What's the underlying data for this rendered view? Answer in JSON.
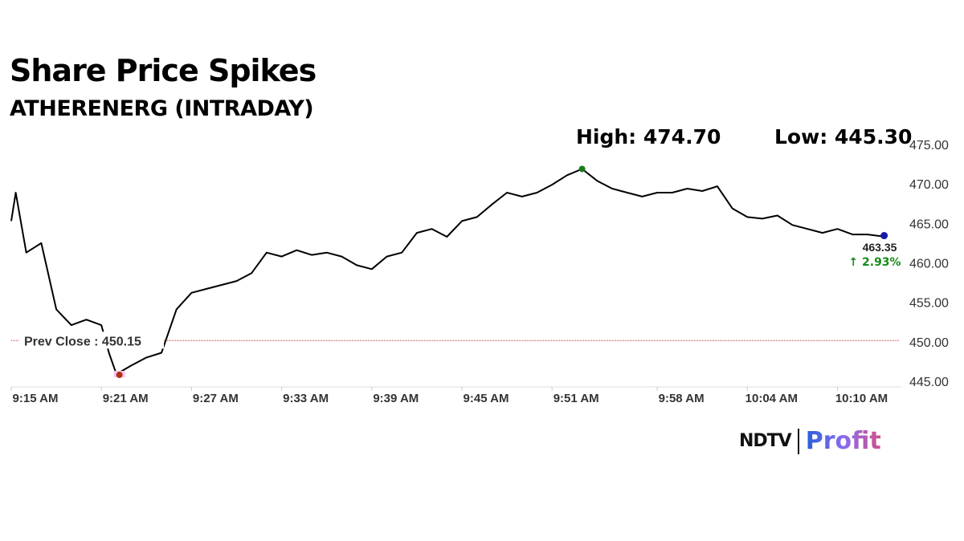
{
  "chart_data": {
    "type": "line",
    "title": "Share Price Spikes",
    "subtitle": "ATHERENERG (INTRADAY)",
    "high_label": "High: 474.70",
    "low_label": "Low: 445.30",
    "ylim": [
      445,
      475
    ],
    "yticks": [
      "475.00",
      "470.00",
      "465.00",
      "460.00",
      "455.00",
      "450.00",
      "445.00"
    ],
    "ytick_values": [
      475,
      470,
      465,
      460,
      455,
      450,
      445
    ],
    "xticks": [
      "9:15 AM",
      "9:21 AM",
      "9:27 AM",
      "9:33 AM",
      "9:39 AM",
      "9:45 AM",
      "9:51 AM",
      "9:58 AM",
      "10:04 AM",
      "10:10 AM"
    ],
    "xtick_times": [
      "9:15",
      "9:21",
      "9:27",
      "9:33",
      "9:39",
      "9:45",
      "9:51",
      "9:58",
      "10:04",
      "10:10"
    ],
    "xrange": [
      "9:15",
      "10:15"
    ],
    "grid": false,
    "line_color": "#000000",
    "prev_close": {
      "value": 450.15,
      "label": "Prev Close : 450.15",
      "color": "#c0392b"
    },
    "last": {
      "value_label": "463.35",
      "change_label": "↑ 2.93%",
      "change_color": "#1a8a1a",
      "marker_color": "#1a1aaa"
    },
    "high_marker_color": "#1a7a1a",
    "low_marker_color": "#b03010",
    "x": [
      "9:15",
      "9:15.3",
      "9:16",
      "9:17",
      "9:18",
      "9:19",
      "9:20",
      "9:21",
      "9:21.5",
      "9:22",
      "9:23",
      "9:24",
      "9:25",
      "9:26",
      "9:27",
      "9:28",
      "9:29",
      "9:30",
      "9:31",
      "9:32",
      "9:33",
      "9:34",
      "9:35",
      "9:36",
      "9:37",
      "9:38",
      "9:39",
      "9:40",
      "9:41",
      "9:42",
      "9:43",
      "9:44",
      "9:45",
      "9:46",
      "9:47",
      "9:48",
      "9:49",
      "9:50",
      "9:51",
      "9:52",
      "9:53",
      "9:54",
      "9:55",
      "9:56",
      "9:57",
      "9:58",
      "9:59",
      "10:00",
      "10:01",
      "10:02",
      "10:03",
      "10:04",
      "10:05",
      "10:06",
      "10:07",
      "10:08",
      "10:09",
      "10:10",
      "10:11",
      "10:12",
      "10:13"
    ],
    "values": [
      465.3,
      468.9,
      461.3,
      462.5,
      454.1,
      452.1,
      452.8,
      452.1,
      448.6,
      445.9,
      447.0,
      448.0,
      448.6,
      454.1,
      456.2,
      456.7,
      457.2,
      457.7,
      458.7,
      461.3,
      460.8,
      461.6,
      461.0,
      461.3,
      460.8,
      459.7,
      459.2,
      460.8,
      461.3,
      463.8,
      464.3,
      463.3,
      465.3,
      465.8,
      467.4,
      468.9,
      468.4,
      468.9,
      469.9,
      471.1,
      471.9,
      470.4,
      469.4,
      468.9,
      468.4,
      468.9,
      468.9,
      469.4,
      469.1,
      469.7,
      466.9,
      465.8,
      465.6,
      466.0,
      464.8,
      464.3,
      463.8,
      464.3,
      463.6,
      463.6,
      463.35
    ],
    "low_point": {
      "x": "9:22.2",
      "value": 445.9
    },
    "high_point": {
      "x": "9:53",
      "value": 471.9
    }
  },
  "brand": {
    "left": "NDTV",
    "right": "Profit"
  }
}
